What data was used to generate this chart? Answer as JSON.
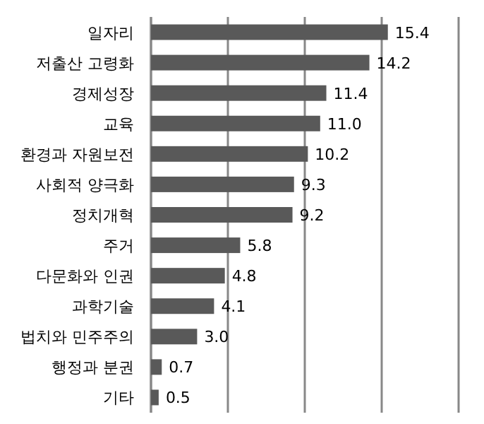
{
  "chart_data": {
    "type": "bar",
    "orientation": "horizontal",
    "categories": [
      "일자리",
      "저출산 고령화",
      "경제성장",
      "교육",
      "환경과 자원보전",
      "사회적 양극화",
      "정치개혁",
      "주거",
      "다문화와 인권",
      "과학기술",
      "법치와 민주주의",
      "행정과 분권",
      "기타"
    ],
    "values": [
      15.4,
      14.2,
      11.4,
      11.0,
      10.2,
      9.3,
      9.2,
      5.8,
      4.8,
      4.1,
      3.0,
      0.7,
      0.5
    ],
    "value_labels": [
      "15.4",
      "14.2",
      "11.4",
      "11.0",
      "10.2",
      "9.3",
      "9.2",
      "5.8",
      "4.8",
      "4.1",
      "3.0",
      "0.7",
      "0.5"
    ],
    "color": "#595959",
    "xlim": [
      0,
      20
    ],
    "xticks": [
      {
        "value": 0,
        "label": null
      },
      {
        "value": 5,
        "label": null
      },
      {
        "value": 10,
        "label": null
      },
      {
        "value": 15,
        "label": null
      },
      {
        "value": 20,
        "label": null
      }
    ],
    "grid": "x",
    "tick_labels": "y"
  }
}
